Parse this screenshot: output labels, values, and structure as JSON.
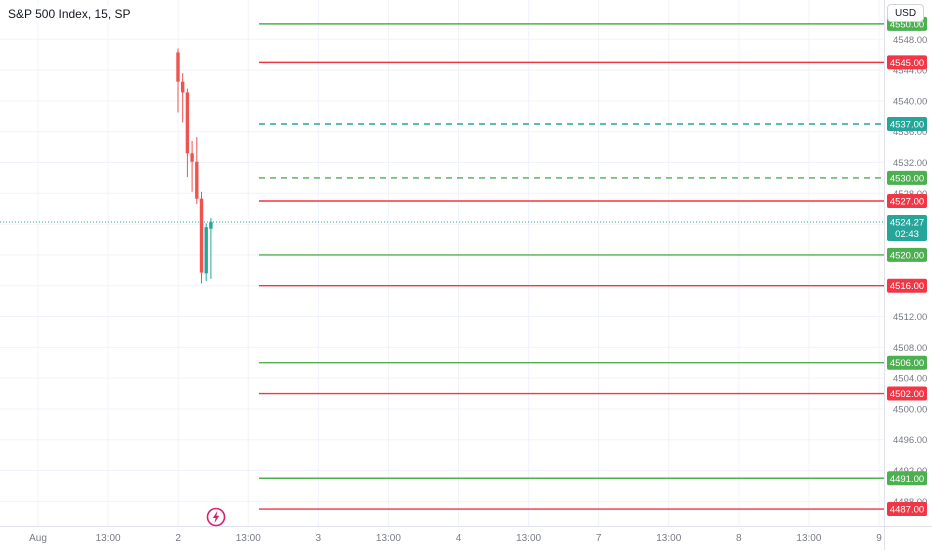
{
  "header": {
    "title": "S&P 500 Index, 15, SP",
    "currency": "USD"
  },
  "colors": {
    "up": "#26a69a",
    "down": "#ef5350",
    "support_line": "#4caf50",
    "resistance_line": "#f23645",
    "support_badge": "#4caf50",
    "resistance_badge": "#f23645",
    "current_badge": "#26a69a",
    "dashed_line": "#26a69a",
    "grid": "#f0f3fa",
    "axis_text": "#787b86",
    "watermark": "#d5216f"
  },
  "chart_data": {
    "type": "candlestick",
    "ylim": [
      4484.8,
      4553.1
    ],
    "y_ticks": [
      "4548.00",
      "4544.00",
      "4540.00",
      "4536.00",
      "4532.00",
      "4528.00",
      "4524.00",
      "4520.00",
      "4516.00",
      "4512.00",
      "4508.00",
      "4504.00",
      "4500.00",
      "4496.00",
      "4492.00",
      "4488.00"
    ],
    "x_ticks": [
      "Aug",
      "13:00",
      "2",
      "13:00",
      "3",
      "13:00",
      "4",
      "13:00",
      "7",
      "13:00",
      "8",
      "13:00",
      "9"
    ],
    "candles": [
      {
        "open": 4546.3,
        "high": 4546.8,
        "low": 4538.5,
        "close": 4542.5
      },
      {
        "open": 4542.5,
        "high": 4543.6,
        "low": 4537.2,
        "close": 4541.1
      },
      {
        "open": 4541.1,
        "high": 4541.6,
        "low": 4530.1,
        "close": 4533.2
      },
      {
        "open": 4533.2,
        "high": 4534.8,
        "low": 4528.2,
        "close": 4532.1
      },
      {
        "open": 4532.1,
        "high": 4535.3,
        "low": 4526.6,
        "close": 4527.3
      },
      {
        "open": 4527.3,
        "high": 4528.2,
        "low": 4516.3,
        "close": 4517.7
      },
      {
        "open": 4517.6,
        "high": 4524.1,
        "low": 4516.6,
        "close": 4523.6
      },
      {
        "open": 4523.4,
        "high": 4524.8,
        "low": 4516.9,
        "close": 4524.3
      }
    ],
    "levels": [
      {
        "value": 4550.0,
        "label": "4550.00",
        "kind": "support",
        "style": "solid"
      },
      {
        "value": 4545.0,
        "label": "4545.00",
        "kind": "resistance",
        "style": "solid"
      },
      {
        "value": 4537.0,
        "label": "4537.00",
        "kind": "current",
        "style": "dashed"
      },
      {
        "value": 4530.0,
        "label": "4530.00",
        "kind": "support",
        "style": "dashed"
      },
      {
        "value": 4527.0,
        "label": "4527.00",
        "kind": "resistance",
        "style": "solid"
      },
      {
        "value": 4520.0,
        "label": "4520.00",
        "kind": "support",
        "style": "solid"
      },
      {
        "value": 4516.0,
        "label": "4516.00",
        "kind": "resistance",
        "style": "solid"
      },
      {
        "value": 4506.0,
        "label": "4506.00",
        "kind": "support",
        "style": "solid"
      },
      {
        "value": 4502.0,
        "label": "4502.00",
        "kind": "resistance",
        "style": "solid"
      },
      {
        "value": 4491.0,
        "label": "4491.00",
        "kind": "support",
        "style": "solid"
      },
      {
        "value": 4487.0,
        "label": "4487.00",
        "kind": "resistance",
        "style": "solid"
      }
    ],
    "current_price": {
      "value": 4524.27,
      "label": "4524.27",
      "countdown": "02:43"
    }
  }
}
